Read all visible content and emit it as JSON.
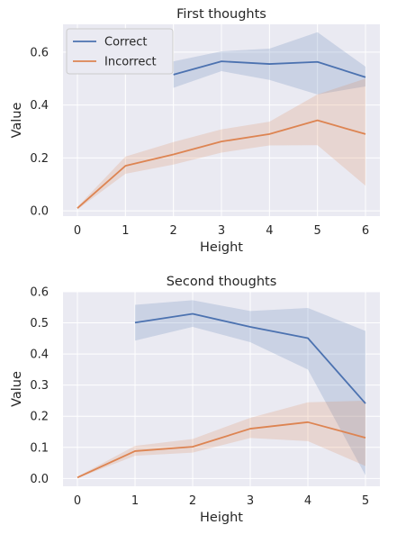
{
  "chart_data": [
    {
      "type": "line",
      "title": "First thoughts",
      "xlabel": "Height",
      "ylabel": "Value",
      "xlim": [
        -0.3,
        6.3
      ],
      "ylim": [
        -0.02,
        0.705
      ],
      "xticks": [
        0,
        1,
        2,
        3,
        4,
        5,
        6
      ],
      "yticks": [
        0.0,
        0.2,
        0.4,
        0.6
      ],
      "ytick_labels": [
        "0.0",
        "0.2",
        "0.4",
        "0.6"
      ],
      "grid": true,
      "legend": "top-left",
      "series": [
        {
          "name": "Correct",
          "color": "#4c72b0",
          "x": [
            2,
            3,
            4,
            5,
            6
          ],
          "y": [
            0.515,
            0.565,
            0.555,
            0.563,
            0.505
          ],
          "lower": [
            0.465,
            0.528,
            0.495,
            0.44,
            0.47
          ],
          "upper": [
            0.565,
            0.603,
            0.613,
            0.675,
            0.545
          ]
        },
        {
          "name": "Incorrect",
          "color": "#dd8452",
          "x": [
            0,
            1,
            2,
            3,
            4,
            5,
            6
          ],
          "y": [
            0.01,
            0.17,
            0.213,
            0.262,
            0.29,
            0.342,
            0.29
          ],
          "lower": [
            0.005,
            0.14,
            0.175,
            0.22,
            0.247,
            0.248,
            0.095
          ],
          "upper": [
            0.015,
            0.205,
            0.26,
            0.308,
            0.337,
            0.44,
            0.5
          ]
        }
      ]
    },
    {
      "type": "line",
      "title": "Second thoughts",
      "xlabel": "Height",
      "ylabel": "Value",
      "xlim": [
        -0.25,
        5.25
      ],
      "ylim": [
        -0.025,
        0.6
      ],
      "xticks": [
        0,
        1,
        2,
        3,
        4,
        5
      ],
      "yticks": [
        0.0,
        0.1,
        0.2,
        0.3,
        0.4,
        0.5,
        0.6
      ],
      "ytick_labels": [
        "0.0",
        "0.1",
        "0.2",
        "0.3",
        "0.4",
        "0.5",
        "0.6"
      ],
      "grid": true,
      "legend": "none",
      "series": [
        {
          "name": "Correct",
          "color": "#4c72b0",
          "x": [
            1,
            2,
            3,
            4,
            5
          ],
          "y": [
            0.501,
            0.529,
            0.487,
            0.451,
            0.241
          ],
          "lower": [
            0.443,
            0.487,
            0.438,
            0.35,
            0.01
          ],
          "upper": [
            0.558,
            0.573,
            0.538,
            0.548,
            0.474
          ]
        },
        {
          "name": "Incorrect",
          "color": "#dd8452",
          "x": [
            0,
            1,
            2,
            3,
            4,
            5
          ],
          "y": [
            0.003,
            0.088,
            0.102,
            0.16,
            0.181,
            0.131
          ],
          "lower": [
            0.001,
            0.073,
            0.083,
            0.13,
            0.12,
            0.04
          ],
          "upper": [
            0.006,
            0.105,
            0.127,
            0.195,
            0.245,
            0.25
          ]
        }
      ]
    }
  ]
}
